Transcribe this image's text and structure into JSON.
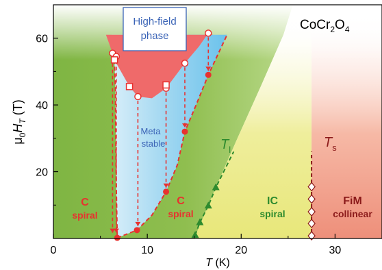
{
  "chart_data": {
    "type": "scatter",
    "title": "CoCr2O4",
    "title_parts": {
      "main": "CoCr",
      "sub1": "2",
      "mid": "O",
      "sub2": "4"
    },
    "xlabel": "T (K)",
    "xlabel_parts": {
      "var": "T",
      "unit": " (K)"
    },
    "ylabel": "μ0HT (T)",
    "ylabel_parts": {
      "mu": "μ",
      "mu_sub": "0",
      "H": "H",
      "H_sub": "T",
      "unit": " (T)"
    },
    "xlim": [
      0,
      35
    ],
    "ylim": [
      0,
      70
    ],
    "xticks": [
      0,
      10,
      20,
      30
    ],
    "yticks": [
      20,
      40,
      60
    ],
    "grid": false,
    "colors": {
      "green": "#8fbe4f",
      "yellow": "#ecea86",
      "salmon": "#f0a48a",
      "red_phase": "#ef6a6a",
      "blue_phase": "#87cdee",
      "red_marker": "#e8312f",
      "dark_green": "#2e8b2e",
      "dark_red": "#8b1a1a",
      "label_blue": "#3a63b6"
    },
    "series": [
      {
        "marker": "filled-circle",
        "color": "#e8312f",
        "x": [
          6.8,
          8.9,
          12.0,
          14.0,
          16.5
        ],
        "y": [
          0.2,
          2.5,
          14.0,
          32.0,
          49.0
        ]
      },
      {
        "marker": "open-circle",
        "color": "#e8312f",
        "x": [
          6.3,
          6.7,
          9.0,
          12.0,
          14.0,
          16.5
        ],
        "y": [
          55.5,
          54.5,
          42.5,
          45.0,
          52.5,
          61.5
        ]
      },
      {
        "marker": "open-square",
        "color": "#e8312f",
        "x": [
          6.5,
          8.1,
          12.0
        ],
        "y": [
          53.5,
          45.5,
          46.0
        ]
      },
      {
        "marker": "filled-triangle",
        "color": "#2e8b2e",
        "x": [
          15.1,
          15.6,
          16.5,
          17.3
        ],
        "y": [
          1.0,
          4.8,
          9.8,
          15.3
        ]
      },
      {
        "marker": "open-diamond",
        "color": "#8b1a1a",
        "x": [
          27.5,
          27.5,
          27.5,
          27.5,
          27.5
        ],
        "y": [
          0.8,
          4.5,
          8.0,
          11.8,
          15.5
        ]
      }
    ],
    "annotations": {
      "highfield_1": "High-field",
      "highfield_2": "phase",
      "meta_1": "Meta",
      "meta_2": "stable",
      "c_spiral_left_1": "C",
      "c_spiral_left_2": "spiral",
      "c_spiral_right_1": "C",
      "c_spiral_right_2": "spiral",
      "ic_1": "IC",
      "ic_2": "spiral",
      "fim_1": "FiM",
      "fim_2": "collinear",
      "tl_var": "T",
      "tl_sub": "l",
      "ts_var": "T",
      "ts_sub": "s"
    }
  }
}
